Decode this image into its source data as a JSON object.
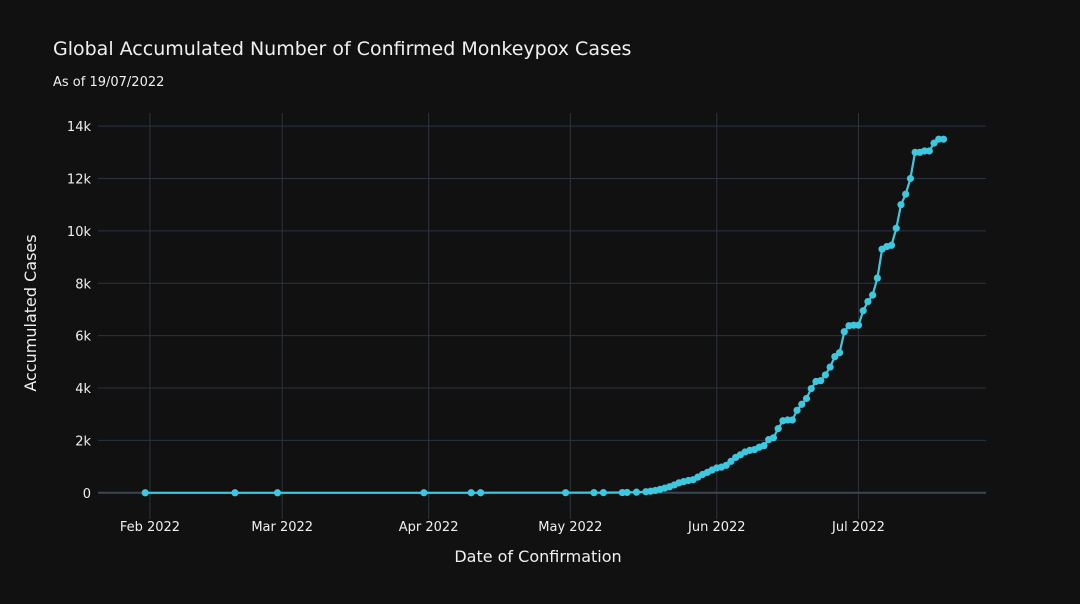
{
  "chart_data": {
    "type": "line",
    "title": "Global Accumulated Number of Confirmed Monkeypox Cases",
    "subtitle": "As of 19/07/2022",
    "xlabel": "Date of Confirmation",
    "ylabel": "Accumulated Cases",
    "xlim": [
      "2022-01-21",
      "2022-07-28"
    ],
    "ylim": [
      -1000,
      14500
    ],
    "x_ticks": [
      {
        "date": "2022-02-01",
        "label": "Feb 2022"
      },
      {
        "date": "2022-03-01",
        "label": "Mar 2022"
      },
      {
        "date": "2022-04-01",
        "label": "Apr 2022"
      },
      {
        "date": "2022-05-01",
        "label": "May 2022"
      },
      {
        "date": "2022-06-01",
        "label": "Jun 2022"
      },
      {
        "date": "2022-07-01",
        "label": "Jul 2022"
      }
    ],
    "y_ticks": [
      {
        "value": 0,
        "label": "0"
      },
      {
        "value": 2000,
        "label": "2k"
      },
      {
        "value": 4000,
        "label": "4k"
      },
      {
        "value": 6000,
        "label": "6k"
      },
      {
        "value": 8000,
        "label": "8k"
      },
      {
        "value": 10000,
        "label": "10k"
      },
      {
        "value": 12000,
        "label": "12k"
      },
      {
        "value": 14000,
        "label": "14k"
      }
    ],
    "grid": true,
    "colors": {
      "line": "#3ec8e0",
      "background": "#111111",
      "grid": "#2a3440"
    },
    "series": [
      {
        "x": [
          "2022-01-31",
          "2022-02-19",
          "2022-02-28",
          "2022-03-31",
          "2022-04-10",
          "2022-04-12",
          "2022-04-30",
          "2022-05-06",
          "2022-05-08",
          "2022-05-12",
          "2022-05-13",
          "2022-05-15",
          "2022-05-17",
          "2022-05-18",
          "2022-05-19",
          "2022-05-20",
          "2022-05-21",
          "2022-05-22",
          "2022-05-23",
          "2022-05-24",
          "2022-05-25",
          "2022-05-26",
          "2022-05-27",
          "2022-05-28",
          "2022-05-29",
          "2022-05-30",
          "2022-05-31",
          "2022-06-01",
          "2022-06-02",
          "2022-06-03",
          "2022-06-04",
          "2022-06-05",
          "2022-06-06",
          "2022-06-07",
          "2022-06-08",
          "2022-06-09",
          "2022-06-10",
          "2022-06-11",
          "2022-06-12",
          "2022-06-13",
          "2022-06-14",
          "2022-06-15",
          "2022-06-16",
          "2022-06-17",
          "2022-06-18",
          "2022-06-19",
          "2022-06-20",
          "2022-06-21",
          "2022-06-22",
          "2022-06-23",
          "2022-06-24",
          "2022-06-25",
          "2022-06-26",
          "2022-06-27",
          "2022-06-28",
          "2022-06-29",
          "2022-06-30",
          "2022-07-01",
          "2022-07-02",
          "2022-07-03",
          "2022-07-04",
          "2022-07-05",
          "2022-07-06",
          "2022-07-07",
          "2022-07-08",
          "2022-07-09",
          "2022-07-10",
          "2022-07-11",
          "2022-07-12",
          "2022-07-13",
          "2022-07-14",
          "2022-07-15",
          "2022-07-16",
          "2022-07-17",
          "2022-07-18",
          "2022-07-19"
        ],
        "y": [
          1,
          1,
          1,
          2,
          2,
          3,
          5,
          6,
          8,
          10,
          15,
          25,
          40,
          60,
          90,
          130,
          180,
          230,
          300,
          380,
          430,
          470,
          500,
          600,
          700,
          780,
          870,
          950,
          980,
          1050,
          1200,
          1350,
          1450,
          1560,
          1620,
          1650,
          1740,
          1800,
          2030,
          2100,
          2450,
          2750,
          2780,
          2780,
          3150,
          3380,
          3600,
          3980,
          4250,
          4280,
          4500,
          4800,
          5200,
          5350,
          6150,
          6380,
          6400,
          6400,
          6950,
          7300,
          7550,
          8200,
          9300,
          9400,
          9450,
          10100,
          11000,
          11400,
          12000,
          13000,
          13000,
          13050,
          13050,
          13350,
          13500,
          13500
        ]
      }
    ]
  }
}
